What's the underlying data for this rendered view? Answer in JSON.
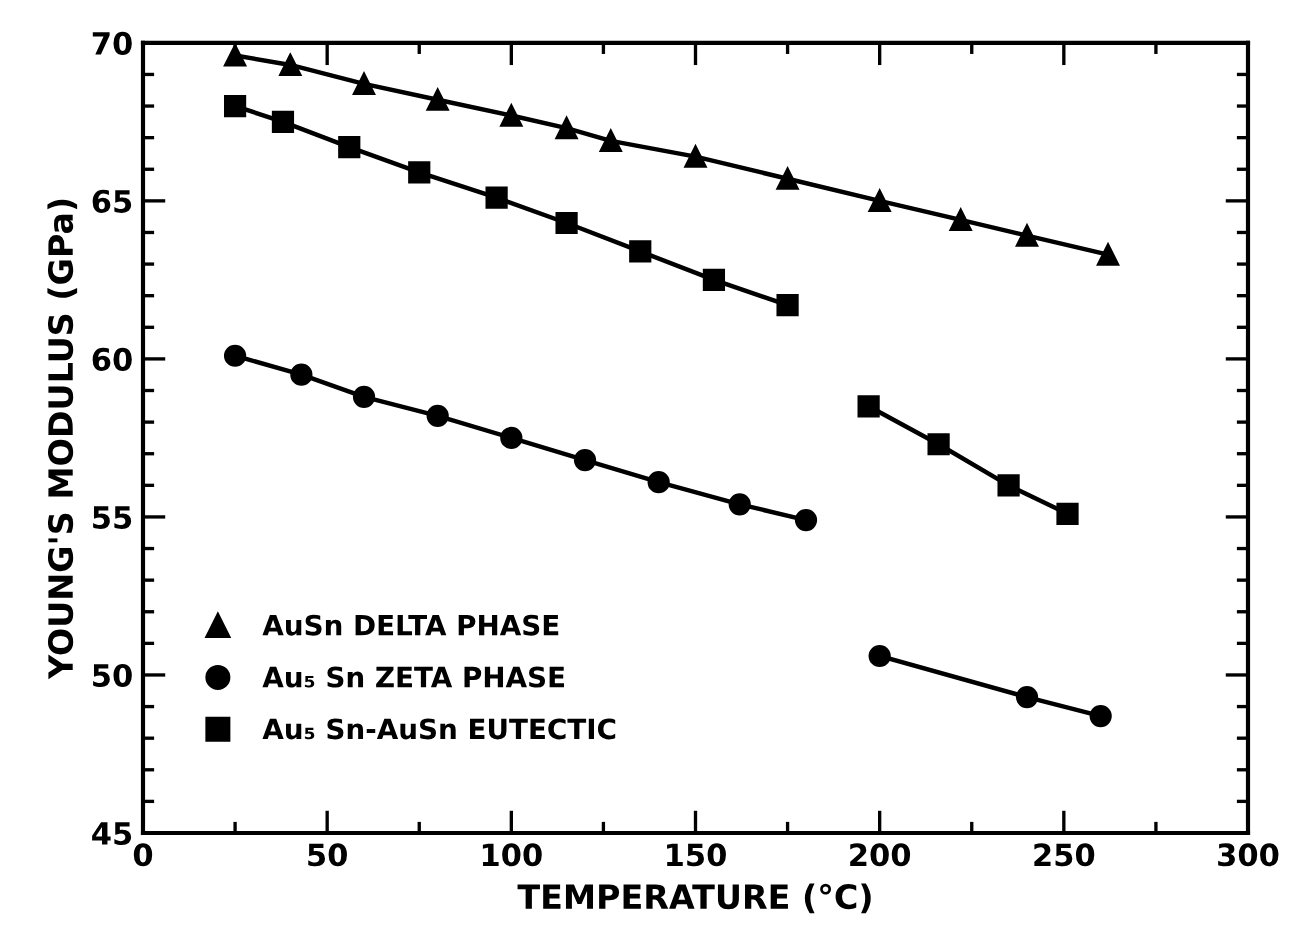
{
  "chart_data": {
    "type": "line",
    "xlabel": "TEMPERATURE (°C)",
    "ylabel": "YOUNG'S MODULUS (GPa)",
    "xlim": [
      0,
      300
    ],
    "ylim": [
      45,
      70
    ],
    "xticks": [
      0,
      {
        "value": 25,
        "label": null
      },
      50,
      {
        "value": 75,
        "label": null
      },
      100,
      {
        "value": 125,
        "label": null
      },
      150,
      {
        "value": 175,
        "label": null
      },
      200,
      {
        "value": 225,
        "label": null
      },
      250,
      {
        "value": 275,
        "label": null
      },
      300
    ],
    "yticks": [
      45,
      {
        "value": 46,
        "label": null
      },
      {
        "value": 47,
        "label": null
      },
      {
        "value": 48,
        "label": null
      },
      {
        "value": 49,
        "label": null
      },
      50,
      {
        "value": 51,
        "label": null
      },
      {
        "value": 52,
        "label": null
      },
      {
        "value": 53,
        "label": null
      },
      {
        "value": 54,
        "label": null
      },
      55,
      {
        "value": 56,
        "label": null
      },
      {
        "value": 57,
        "label": null
      },
      {
        "value": 58,
        "label": null
      },
      {
        "value": 59,
        "label": null
      },
      60,
      {
        "value": 61,
        "label": null
      },
      {
        "value": 62,
        "label": null
      },
      {
        "value": 63,
        "label": null
      },
      {
        "value": 64,
        "label": null
      },
      65,
      {
        "value": 66,
        "label": null
      },
      {
        "value": 67,
        "label": null
      },
      {
        "value": 68,
        "label": null
      },
      {
        "value": 69,
        "label": null
      },
      70
    ],
    "grid": false,
    "legend": "bottom left",
    "line_style": "solid",
    "series": [
      {
        "name": "AuSn DELTA PHASE",
        "color": "#000000",
        "marker": "triangle",
        "x": [
          25,
          40,
          60,
          80,
          100,
          115,
          127,
          150,
          175,
          200,
          222,
          240,
          262
        ],
        "values": [
          69.6,
          69.3,
          68.7,
          68.2,
          67.7,
          67.3,
          66.9,
          66.4,
          65.7,
          65.0,
          64.4,
          63.9,
          63.3
        ]
      },
      {
        "name": "Au₅ Sn ZETA PHASE",
        "color": "#000000",
        "marker": "circle",
        "x": [
          25,
          43,
          60,
          80,
          100,
          120,
          140,
          162,
          180,
          190,
          200,
          240,
          260
        ],
        "values": [
          60.1,
          59.5,
          58.8,
          58.2,
          57.5,
          56.8,
          56.1,
          55.4,
          54.9,
          null,
          50.6,
          49.3,
          48.7
        ]
      },
      {
        "name": "Au₅ Sn-AuSn EUTECTIC",
        "color": "#000000",
        "marker": "square",
        "x": [
          25,
          38,
          56,
          75,
          96,
          115,
          135,
          155,
          175,
          186,
          197,
          216,
          235,
          251
        ],
        "values": [
          68.0,
          67.5,
          66.7,
          65.9,
          65.1,
          64.3,
          63.4,
          62.5,
          61.7,
          null,
          58.5,
          57.3,
          56.0,
          55.1
        ]
      }
    ]
  }
}
